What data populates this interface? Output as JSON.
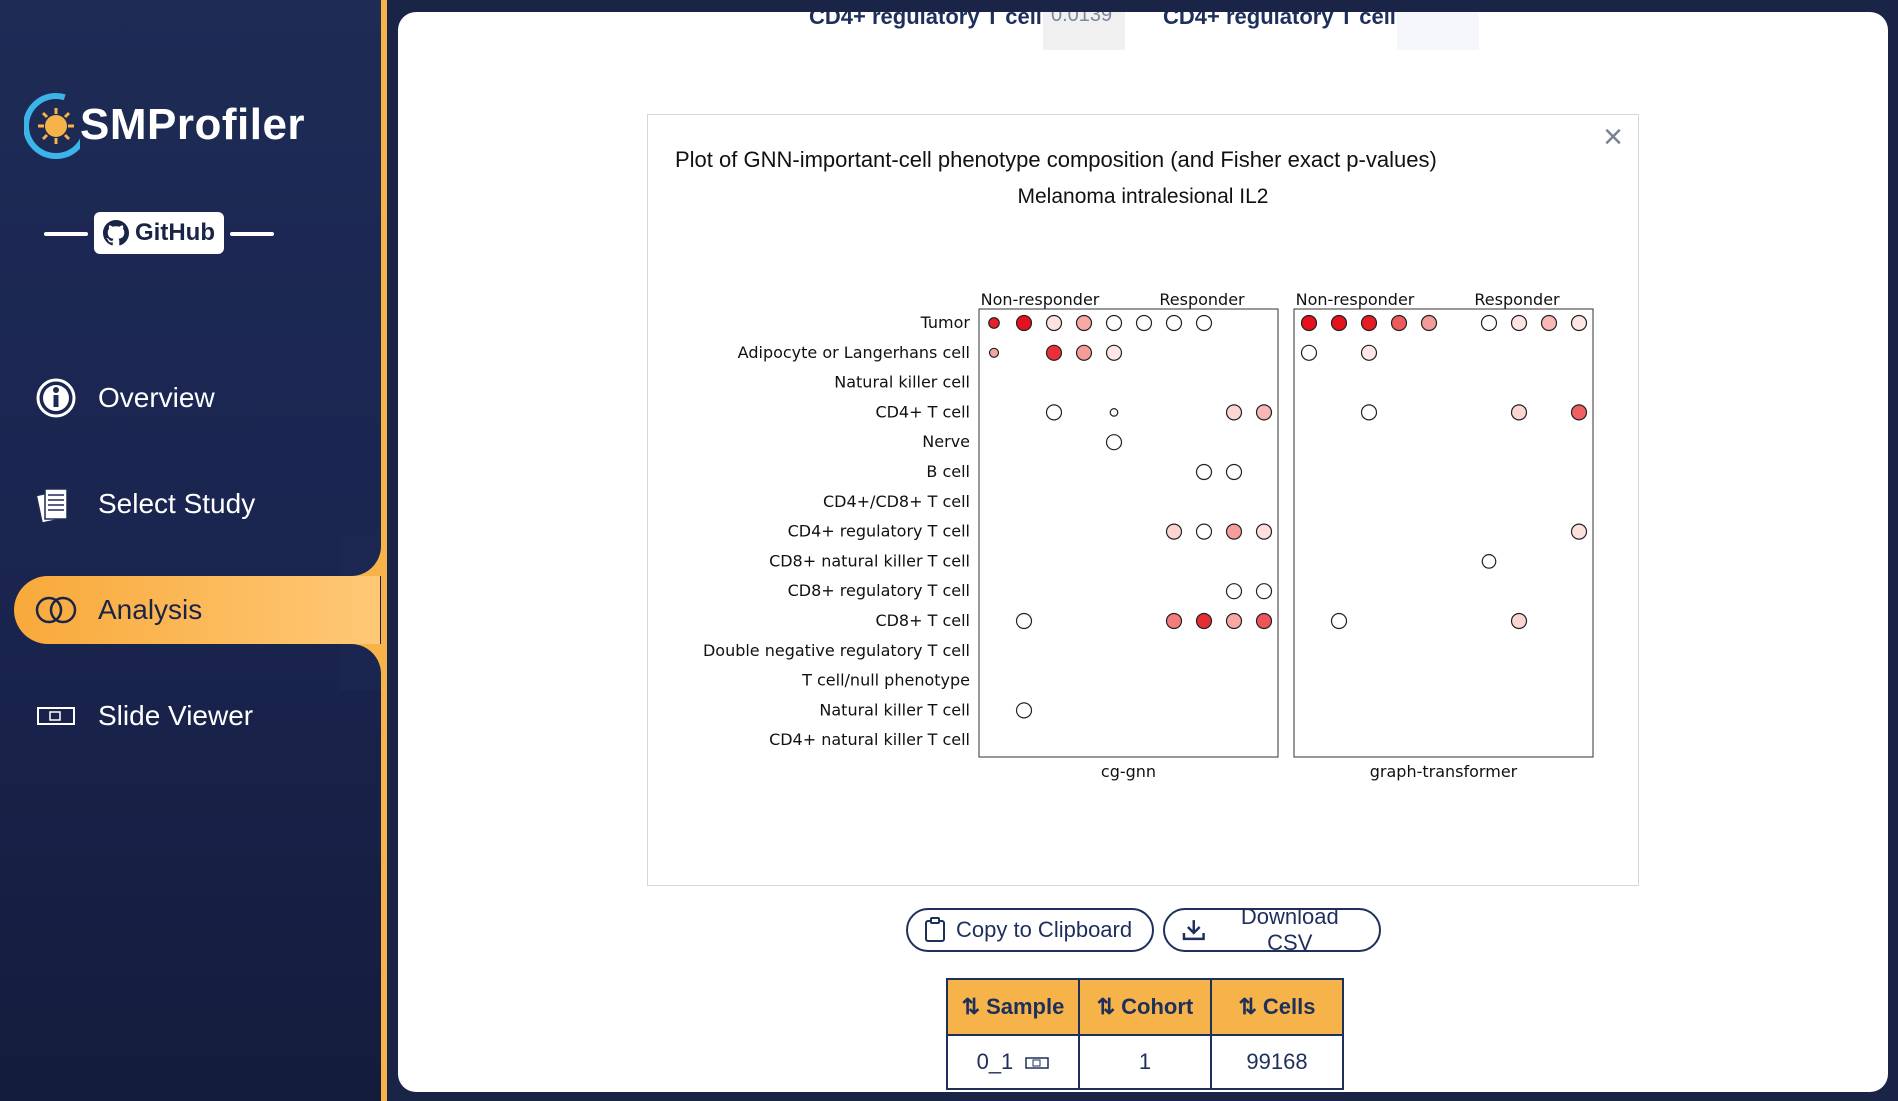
{
  "sidebar": {
    "logo_text": "SMProfiler",
    "github_label": "GitHub",
    "nav": [
      {
        "label": "Overview",
        "icon": "info-icon"
      },
      {
        "label": "Select Study",
        "icon": "documents-icon"
      },
      {
        "label": "Analysis",
        "icon": "venn-icon"
      },
      {
        "label": "Slide Viewer",
        "icon": "slide-icon"
      }
    ],
    "active_index": 2
  },
  "top_row": {
    "left_label": "CD4+ regulatory T cell",
    "left_value": "0.0139",
    "right_label": "CD4+ regulatory T cell",
    "right_value": ""
  },
  "plot": {
    "title": "Plot of GNN-important-cell phenotype composition (and Fisher exact p-values)",
    "subtitle": "Melanoma intralesional IL2",
    "close_label": "×"
  },
  "chart_data": {
    "type": "scatter",
    "rows": [
      "Tumor",
      "Adipocyte or Langerhans cell",
      "Natural killer cell",
      "CD4+ T cell",
      "Nerve",
      "B cell",
      "CD4+/CD8+ T cell",
      "CD4+ regulatory T cell",
      "CD8+ natural killer T cell",
      "CD8+ regulatory T cell",
      "CD8+ T cell",
      "Double negative regulatory T cell",
      "T cell/null phenotype",
      "Natural killer T cell",
      "CD4+ natural killer T cell"
    ],
    "panels": [
      {
        "name": "cg-gnn",
        "groups": [
          "Non-responder",
          "Responder"
        ],
        "columns_per_group": 4,
        "points": [
          {
            "row": 0,
            "col": 0,
            "size": 0.7,
            "color": "#e8202a"
          },
          {
            "row": 0,
            "col": 1,
            "size": 1,
            "color": "#e4121c"
          },
          {
            "row": 0,
            "col": 2,
            "size": 1,
            "color": "#fde3e0"
          },
          {
            "row": 0,
            "col": 3,
            "size": 1,
            "color": "#f7a9a6"
          },
          {
            "row": 0,
            "col": 4,
            "size": 1,
            "color": "#ffffff"
          },
          {
            "row": 0,
            "col": 5,
            "size": 1,
            "color": "#ffffff"
          },
          {
            "row": 0,
            "col": 6,
            "size": 1,
            "color": "#ffffff"
          },
          {
            "row": 0,
            "col": 7,
            "size": 1,
            "color": "#ffffff"
          },
          {
            "row": 1,
            "col": 0,
            "size": 0.6,
            "color": "#f4a3a0"
          },
          {
            "row": 1,
            "col": 2,
            "size": 1,
            "color": "#e9303a"
          },
          {
            "row": 1,
            "col": 3,
            "size": 1,
            "color": "#f39c9a"
          },
          {
            "row": 1,
            "col": 4,
            "size": 1,
            "color": "#fde6e3"
          },
          {
            "row": 3,
            "col": 2,
            "size": 1,
            "color": "#ffffff"
          },
          {
            "row": 3,
            "col": 4,
            "size": 0.5,
            "color": "#ffffff"
          },
          {
            "row": 3,
            "col": 8,
            "size": 1,
            "color": "#fcd6d3"
          },
          {
            "row": 3,
            "col": 9,
            "size": 1,
            "color": "#f9b8b4"
          },
          {
            "row": 4,
            "col": 4,
            "size": 1,
            "color": "#ffffff"
          },
          {
            "row": 5,
            "col": 7,
            "size": 1,
            "color": "#ffffff"
          },
          {
            "row": 5,
            "col": 8,
            "size": 1,
            "color": "#ffffff"
          },
          {
            "row": 7,
            "col": 6,
            "size": 1,
            "color": "#fcd4d0"
          },
          {
            "row": 7,
            "col": 7,
            "size": 1,
            "color": "#ffffff"
          },
          {
            "row": 7,
            "col": 8,
            "size": 1,
            "color": "#f59e9b"
          },
          {
            "row": 7,
            "col": 9,
            "size": 1,
            "color": "#fde0dc"
          },
          {
            "row": 9,
            "col": 8,
            "size": 1,
            "color": "#ffffff"
          },
          {
            "row": 9,
            "col": 9,
            "size": 1,
            "color": "#ffffff"
          },
          {
            "row": 10,
            "col": 1,
            "size": 1,
            "color": "#ffffff"
          },
          {
            "row": 10,
            "col": 6,
            "size": 1,
            "color": "#f27d7c"
          },
          {
            "row": 10,
            "col": 7,
            "size": 1,
            "color": "#e52d34"
          },
          {
            "row": 10,
            "col": 8,
            "size": 1,
            "color": "#f7a8a5"
          },
          {
            "row": 10,
            "col": 9,
            "size": 1,
            "color": "#ee5458"
          },
          {
            "row": 13,
            "col": 1,
            "size": 1,
            "color": "#ffffff"
          }
        ]
      },
      {
        "name": "graph-transformer",
        "groups": [
          "Non-responder",
          "Responder"
        ],
        "columns_per_group": 4,
        "points": [
          {
            "row": 0,
            "col": 0,
            "size": 1,
            "color": "#e4121c"
          },
          {
            "row": 0,
            "col": 1,
            "size": 1,
            "color": "#e4121c"
          },
          {
            "row": 0,
            "col": 2,
            "size": 1,
            "color": "#e61c25"
          },
          {
            "row": 0,
            "col": 3,
            "size": 1,
            "color": "#ee5a5c"
          },
          {
            "row": 0,
            "col": 4,
            "size": 1,
            "color": "#f39b98"
          },
          {
            "row": 0,
            "col": 6,
            "size": 1,
            "color": "#ffffff"
          },
          {
            "row": 0,
            "col": 7,
            "size": 1,
            "color": "#fde4e1"
          },
          {
            "row": 0,
            "col": 8,
            "size": 1,
            "color": "#f9b8b4"
          },
          {
            "row": 0,
            "col": 9,
            "size": 1,
            "color": "#fde6e3"
          },
          {
            "row": 1,
            "col": 0,
            "size": 1,
            "color": "#ffffff"
          },
          {
            "row": 1,
            "col": 2,
            "size": 1,
            "color": "#fde6e3"
          },
          {
            "row": 3,
            "col": 2,
            "size": 1,
            "color": "#ffffff"
          },
          {
            "row": 3,
            "col": 7,
            "size": 1,
            "color": "#fcd4d0"
          },
          {
            "row": 3,
            "col": 9,
            "size": 1,
            "color": "#ee6063"
          },
          {
            "row": 7,
            "col": 9,
            "size": 1,
            "color": "#fde0dc"
          },
          {
            "row": 8,
            "col": 6,
            "size": 0.9,
            "color": "#ffffff"
          },
          {
            "row": 10,
            "col": 1,
            "size": 1,
            "color": "#ffffff"
          },
          {
            "row": 10,
            "col": 7,
            "size": 1,
            "color": "#fcd4d0"
          }
        ]
      }
    ]
  },
  "buttons": {
    "copy": "Copy to Clipboard",
    "download": "Download CSV"
  },
  "table": {
    "headers": [
      "Sample",
      "Cohort",
      "Cells"
    ],
    "sort_glyph": "⇅",
    "rows": [
      {
        "sample": "0_1",
        "cohort": "1",
        "cells": "99168"
      }
    ]
  }
}
